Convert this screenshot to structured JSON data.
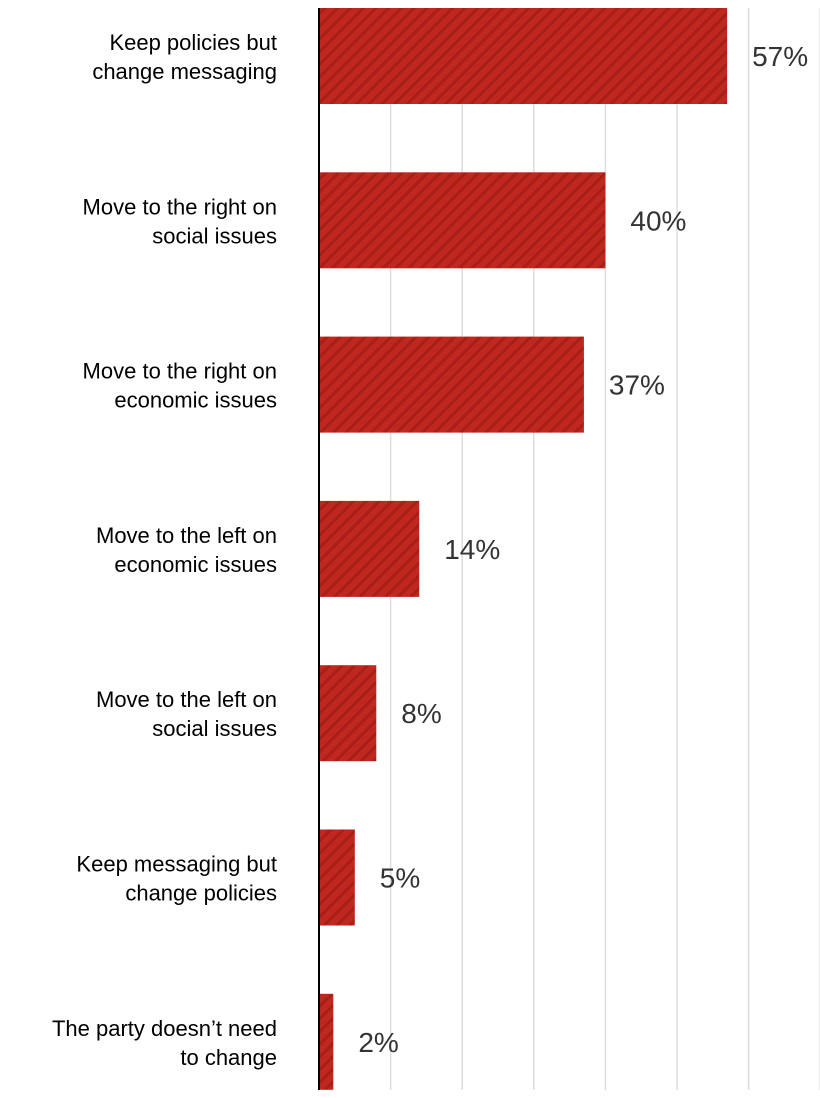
{
  "chart_data": {
    "type": "bar",
    "orientation": "horizontal",
    "categories": [
      [
        "Keep policies but",
        "change messaging"
      ],
      [
        "Move to the right on",
        "social issues"
      ],
      [
        "Move to the right on",
        "economic issues"
      ],
      [
        "Move to the left on",
        "economic issues"
      ],
      [
        "Move to the left on",
        "social issues"
      ],
      [
        "Keep messaging but",
        "change policies"
      ],
      [
        "The party doesn’t need",
        "to change"
      ]
    ],
    "values": [
      57,
      40,
      37,
      14,
      8,
      5,
      2
    ],
    "value_labels": [
      "57%",
      "40%",
      "37%",
      "14%",
      "8%",
      "5%",
      "2%"
    ],
    "xlim": [
      0,
      70
    ],
    "grid": true,
    "bar_color": "#c0271e",
    "bar_pattern": "diagonal-stripes",
    "title": "",
    "xlabel": "",
    "ylabel": ""
  }
}
